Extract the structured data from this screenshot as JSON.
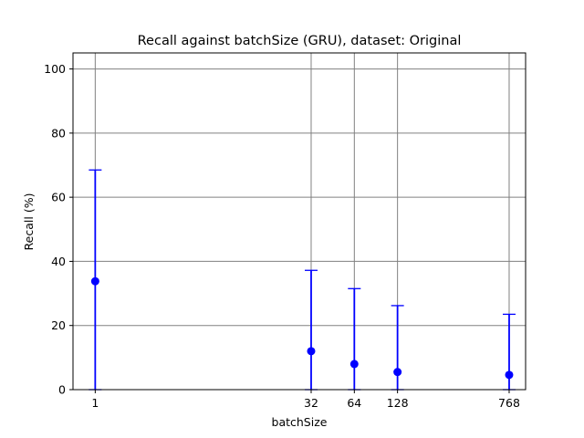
{
  "chart_data": {
    "type": "scatter",
    "title": "Recall against batchSize (GRU), dataset: Original",
    "xlabel": "batchSize",
    "ylabel": "Recall (%)",
    "x_scale": "log",
    "xlim": [
      0.7,
      1000
    ],
    "ylim": [
      0,
      105
    ],
    "x_ticks": [
      1,
      32,
      64,
      128,
      768
    ],
    "x_tick_labels": [
      "1",
      "32",
      "64",
      "128",
      "768"
    ],
    "y_ticks": [
      0,
      20,
      40,
      60,
      80,
      100
    ],
    "y_tick_labels": [
      "0",
      "20",
      "40",
      "60",
      "80",
      "100"
    ],
    "grid": true,
    "colors": {
      "series": "#0000ff",
      "grid": "#808080"
    },
    "series": [
      {
        "x": [
          1,
          32,
          64,
          128,
          768
        ],
        "y": [
          33.8,
          12.0,
          8.0,
          5.5,
          4.6
        ],
        "yerr_low": [
          0,
          0,
          0,
          0,
          0
        ],
        "yerr_high": [
          68.5,
          37.2,
          31.5,
          26.2,
          23.5
        ]
      }
    ]
  }
}
